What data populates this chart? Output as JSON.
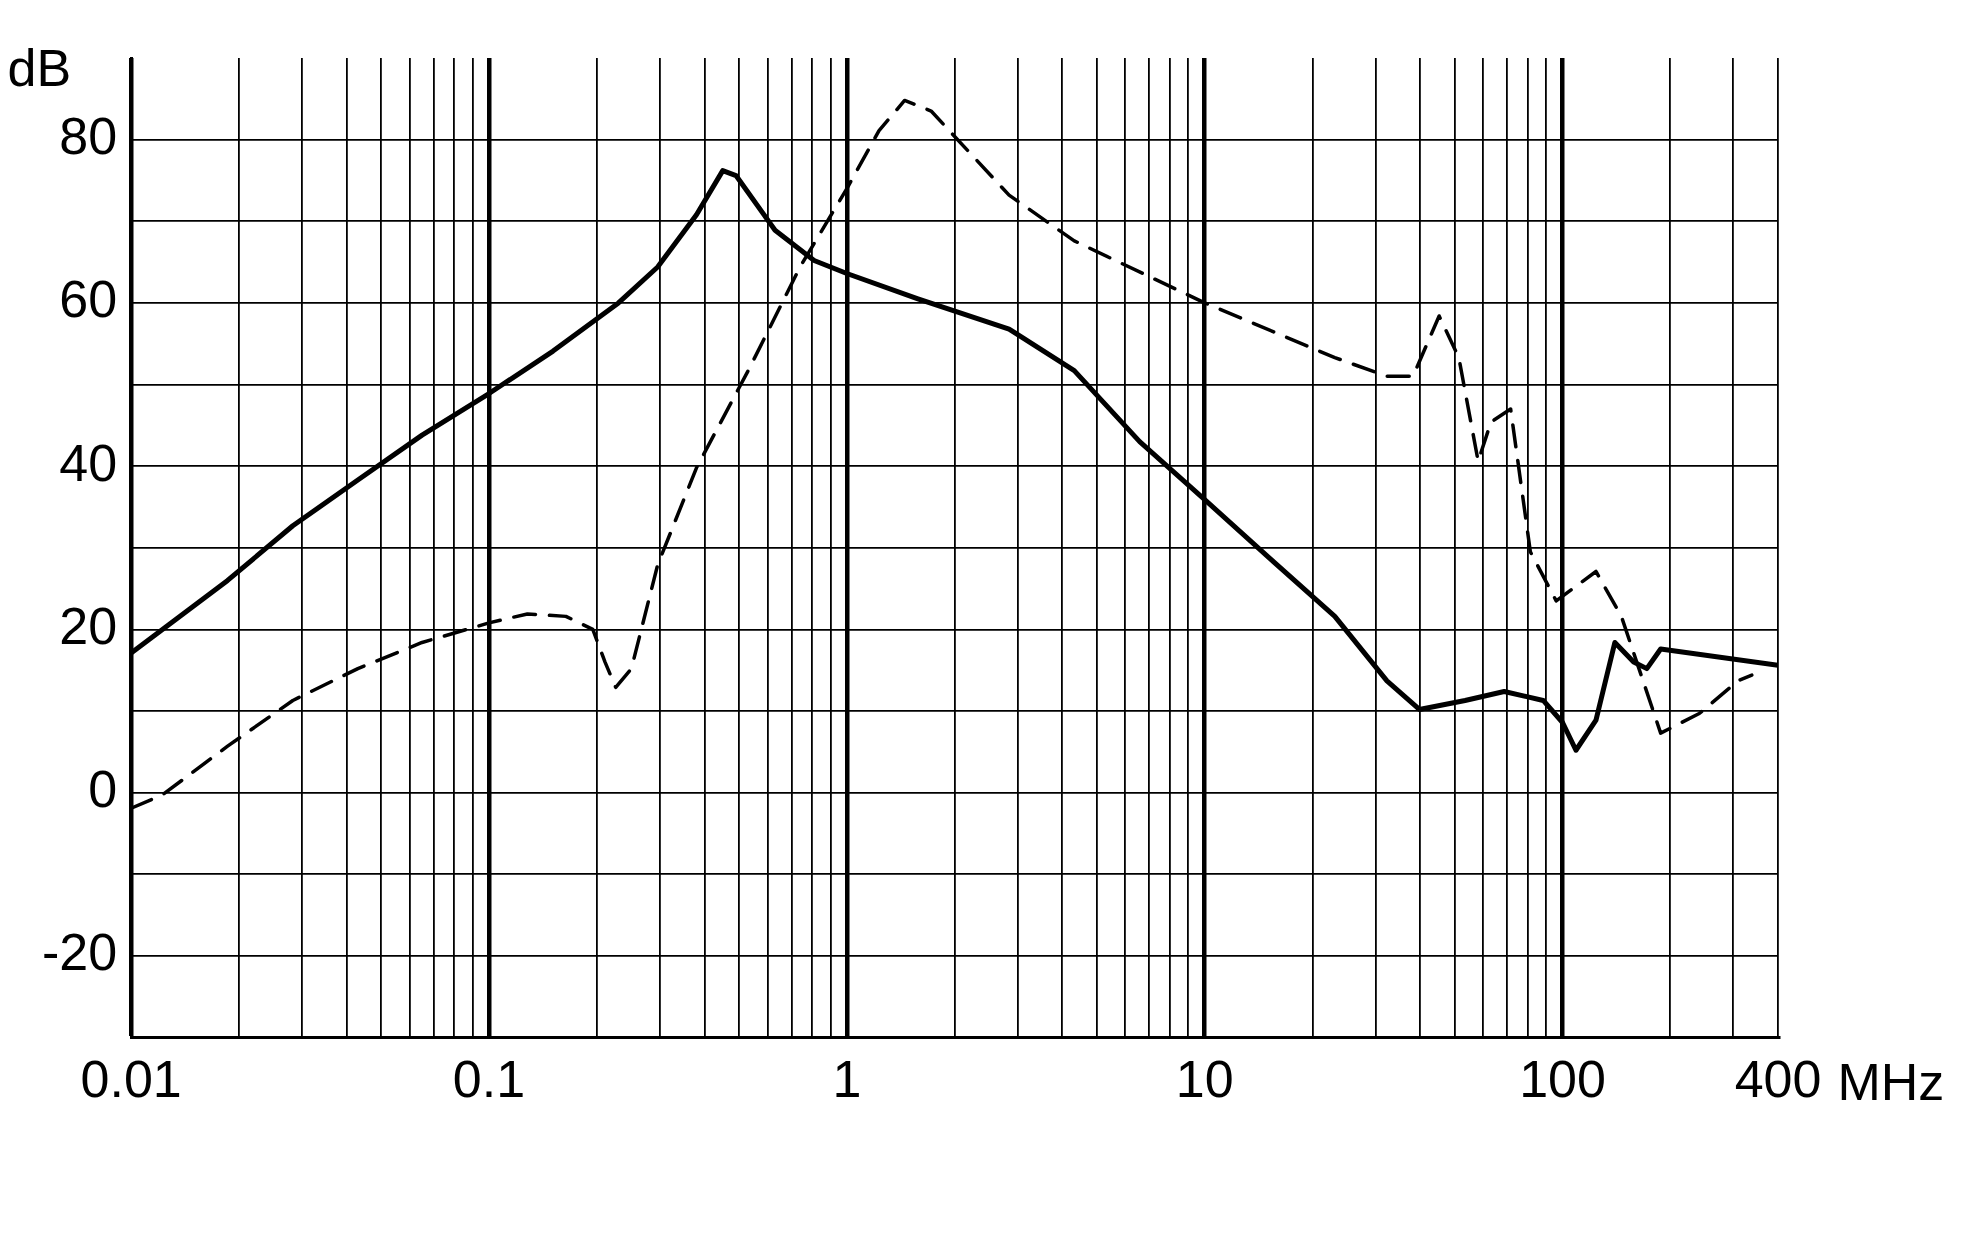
{
  "chart_data": {
    "type": "line",
    "xlabel": "MHz",
    "ylabel": "dB",
    "log": "x",
    "grid": true,
    "legend": false,
    "marker": "none",
    "xlim": [
      0.01,
      400
    ],
    "ylim": [
      -30,
      90
    ],
    "xticks": [
      0.01,
      {
        "value": 0.02,
        "label": null
      },
      {
        "value": 0.03,
        "label": null
      },
      {
        "value": 0.04,
        "label": null
      },
      {
        "value": 0.05,
        "label": null
      },
      {
        "value": 0.06,
        "label": null
      },
      {
        "value": 0.07,
        "label": null
      },
      {
        "value": 0.08,
        "label": null
      },
      {
        "value": 0.09,
        "label": null
      },
      0.1,
      {
        "value": 0.2,
        "label": null
      },
      {
        "value": 0.3,
        "label": null
      },
      {
        "value": 0.4,
        "label": null
      },
      {
        "value": 0.5,
        "label": null
      },
      {
        "value": 0.6,
        "label": null
      },
      {
        "value": 0.7,
        "label": null
      },
      {
        "value": 0.8,
        "label": null
      },
      {
        "value": 0.9,
        "label": null
      },
      1,
      {
        "value": 2,
        "label": null
      },
      {
        "value": 3,
        "label": null
      },
      {
        "value": 4,
        "label": null
      },
      {
        "value": 5,
        "label": null
      },
      {
        "value": 6,
        "label": null
      },
      {
        "value": 7,
        "label": null
      },
      {
        "value": 8,
        "label": null
      },
      {
        "value": 9,
        "label": null
      },
      10,
      {
        "value": 20,
        "label": null
      },
      {
        "value": 30,
        "label": null
      },
      {
        "value": 40,
        "label": null
      },
      {
        "value": 50,
        "label": null
      },
      {
        "value": 60,
        "label": null
      },
      {
        "value": 70,
        "label": null
      },
      {
        "value": 80,
        "label": null
      },
      {
        "value": 90,
        "label": null
      },
      100,
      {
        "value": 200,
        "label": null
      },
      {
        "value": 300,
        "label": null
      },
      400
    ],
    "yticks": [
      -20,
      {
        "value": -10,
        "label": null
      },
      0,
      {
        "value": 10,
        "label": null
      },
      20,
      {
        "value": 30,
        "label": null
      },
      40,
      {
        "value": 50,
        "label": null
      },
      60,
      {
        "value": 70,
        "label": null
      },
      80
    ],
    "series": [
      {
        "color": "#000000",
        "line_style": "solid",
        "x": [
          0.01,
          0.0186,
          0.0283,
          0.043,
          0.065,
          0.1,
          0.151,
          0.23,
          0.296,
          0.38,
          0.45,
          0.49,
          0.63,
          0.81,
          1,
          1.58,
          2.84,
          4.32,
          6.58,
          10,
          15.2,
          23.1,
          32.3,
          39.8,
          53.4,
          68.7,
          88.3,
          100,
          109,
          124,
          140,
          158,
          172,
          188,
          400
        ],
        "values": [
          17.1,
          26,
          32.7,
          38.3,
          43.8,
          48.9,
          54.1,
          60,
          64.4,
          70.8,
          76.2,
          75.6,
          68.9,
          65.2,
          63.6,
          60.5,
          56.8,
          51.7,
          43,
          35.9,
          28.7,
          21.6,
          13.7,
          10.2,
          11.3,
          12.4,
          11.3,
          8.6,
          5.2,
          8.9,
          18.4,
          16,
          15.2,
          17.6,
          15.6
        ]
      },
      {
        "color": "#000000",
        "line_style": "dashed",
        "x": [
          0.01,
          0.0122,
          0.0186,
          0.0283,
          0.043,
          0.065,
          0.1,
          0.128,
          0.164,
          0.195,
          0.211,
          0.226,
          0.25,
          0.296,
          0.38,
          0.53,
          0.74,
          1,
          1.23,
          1.45,
          1.72,
          2.84,
          4.32,
          10,
          23.1,
          32.3,
          38.2,
          45.2,
          51.3,
          58.1,
          63.1,
          71.6,
          81.3,
          96,
          124,
          146,
          188,
          241,
          309,
          338
        ],
        "values": [
          -1.9,
          -0.3,
          5.7,
          11.3,
          15.2,
          18.4,
          20.8,
          21.9,
          21.6,
          20,
          16,
          12.9,
          15.2,
          27.9,
          39.8,
          51.7,
          64.4,
          74,
          81.1,
          84.8,
          83.5,
          73.2,
          67.6,
          60,
          53.3,
          51,
          51,
          58.4,
          53.3,
          40.6,
          45.4,
          47,
          29.5,
          23.5,
          27.1,
          21.6,
          7.3,
          9.7,
          13.7,
          14.4
        ]
      }
    ]
  }
}
